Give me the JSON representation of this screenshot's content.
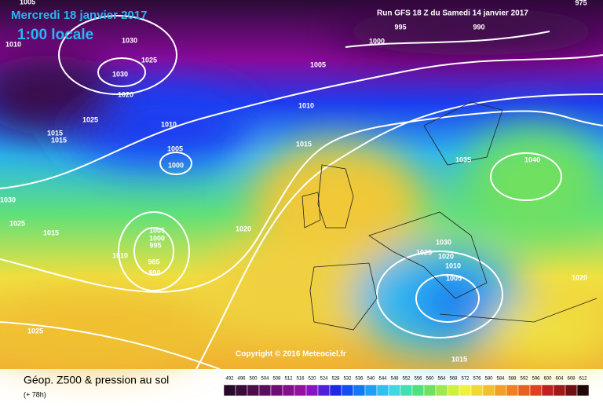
{
  "header": {
    "valid_date": "Mercredi 18 janvier 2017",
    "local_time": "1:00 locale",
    "run": "Run GFS 18 Z du Samedi 14 janvier 2017"
  },
  "copyright": "Copyright © 2016 Meteociel.fr",
  "footer": {
    "description": "Géop. Z500 & pression au sol",
    "step": "(+ 78h)"
  },
  "isobar_labels": [
    975,
    1005,
    995,
    990,
    1000,
    1010,
    1030,
    1025,
    1030,
    1020,
    1025,
    1010,
    1015,
    1015,
    1010,
    1005,
    1015,
    1005,
    1000,
    1035,
    1040,
    1030,
    1025,
    1015,
    1005,
    1000,
    995,
    1010,
    985,
    990,
    1020,
    1030,
    1025,
    1020,
    1010,
    1005,
    1020,
    1025,
    1015
  ],
  "color_scale": {
    "values": [
      492,
      496,
      500,
      504,
      508,
      512,
      516,
      520,
      524,
      528,
      532,
      536,
      540,
      544,
      548,
      552,
      556,
      560,
      564,
      568,
      572,
      576,
      580,
      584,
      588,
      592,
      596,
      600,
      604,
      608,
      612
    ],
    "colors": [
      "#2a0a2a",
      "#3a0a3a",
      "#4a0c4a",
      "#5a0e5e",
      "#6e0e74",
      "#82108a",
      "#9610a0",
      "#8a14c0",
      "#5020d8",
      "#1e28e6",
      "#1050f0",
      "#1478f4",
      "#20a0f4",
      "#30c0f0",
      "#40d8e0",
      "#40e0b0",
      "#50e080",
      "#70e060",
      "#a0e850",
      "#d0f040",
      "#f0f040",
      "#f0d838",
      "#f0c030",
      "#f0a028",
      "#f08020",
      "#e86020",
      "#e04020",
      "#c02020",
      "#a01818",
      "#701010",
      "#200808"
    ]
  }
}
